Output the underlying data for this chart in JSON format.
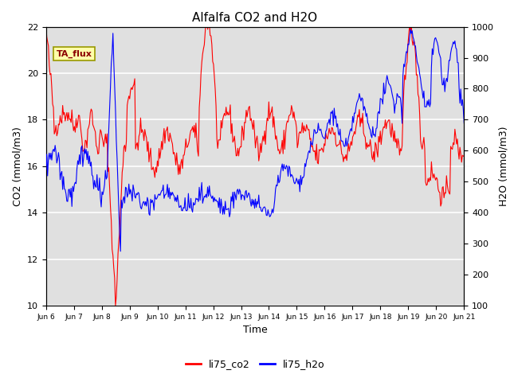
{
  "title": "Alfalfa CO2 and H2O",
  "xlabel": "Time",
  "ylabel_left": "CO2 (mmol/m3)",
  "ylabel_right": "H2O (mmol/m3)",
  "ylim_left": [
    10,
    22
  ],
  "ylim_right": [
    100,
    1000
  ],
  "yticks_left": [
    10,
    12,
    14,
    16,
    18,
    20,
    22
  ],
  "yticks_right": [
    100,
    200,
    300,
    400,
    500,
    600,
    700,
    800,
    900,
    1000
  ],
  "xtick_labels": [
    "Jun 6",
    "Jun 7",
    "Jun 8",
    "Jun 9",
    "Jun 10",
    "Jun 11",
    "Jun 12",
    "Jun 13",
    "Jun 14",
    "Jun 15",
    "Jun 16",
    "Jun 17",
    "Jun 18",
    "Jun 19",
    "Jun 20",
    "Jun 21"
  ],
  "annotation_text": "TA_flux",
  "plot_bg_color": "#e0e0e0",
  "line_co2_color": "red",
  "line_h2o_color": "blue",
  "legend_co2": "li75_co2",
  "legend_h2o": "li75_h2o",
  "n_points": 500
}
